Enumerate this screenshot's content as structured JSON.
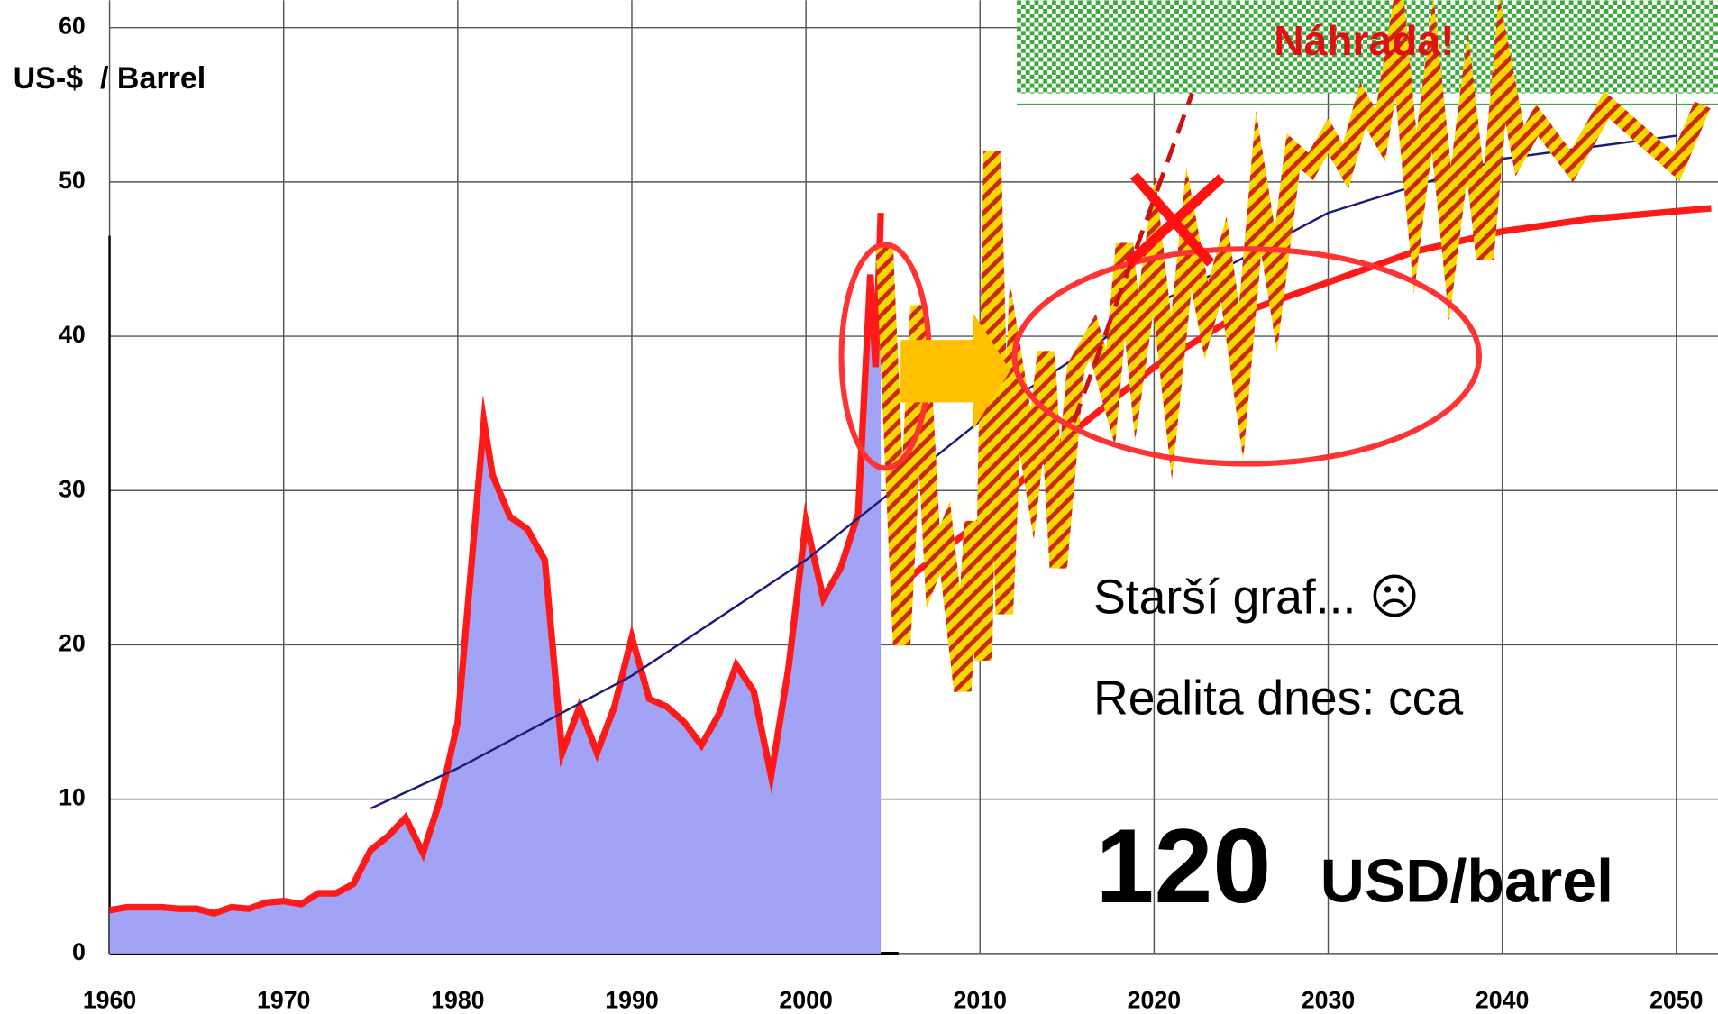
{
  "chart_data": {
    "type": "line",
    "ylabel": "US-$  / Barrel",
    "annotations": {
      "replacement": "Náhrada!",
      "old_chart": "Starší graf... ☹",
      "reality": "Realita dnes: cca",
      "price": "120",
      "unit": "USD/barel"
    },
    "xlim": [
      1960,
      2050
    ],
    "xticks": [
      1960,
      1970,
      1980,
      1990,
      2000,
      2010,
      2020,
      2030,
      2040,
      2050
    ],
    "ylim": [
      0,
      60
    ],
    "yticks": [
      0,
      10,
      20,
      30,
      40,
      50,
      60
    ],
    "grid": true,
    "series": [
      {
        "color": "#ff1a1a",
        "fill": "#a3a3f5",
        "x": [
          1960,
          1961,
          1962,
          1963,
          1964,
          1965,
          1966,
          1967,
          1968,
          1969,
          1970,
          1971,
          1972,
          1973,
          1974,
          1975,
          1976,
          1977,
          1978,
          1979,
          1980,
          1981.5,
          1982,
          1983,
          1984,
          1985,
          1986,
          1987,
          1988,
          1989,
          1990,
          1991,
          1992,
          1993,
          1994,
          1995,
          1996,
          1997,
          1998,
          1999,
          2000,
          2001,
          2002,
          2003,
          2003.7,
          2004,
          2004.3
        ],
        "values": [
          2.8,
          3.0,
          3.0,
          3.0,
          2.9,
          2.9,
          2.6,
          3.0,
          2.9,
          3.3,
          3.4,
          3.2,
          3.9,
          3.9,
          4.5,
          6.7,
          7.6,
          8.8,
          6.5,
          10,
          15,
          34.5,
          31,
          28.3,
          27.5,
          25.5,
          13,
          16,
          13,
          16,
          20.5,
          16.5,
          16,
          15,
          13.5,
          15.5,
          18.7,
          17,
          11.5,
          18.5,
          28,
          23,
          25,
          28.5,
          44,
          38,
          48
        ]
      },
      {
        "color": "#1a1a7a",
        "x": [
          1975,
          1980,
          1990,
          2000,
          2005,
          2010,
          2020,
          2030,
          2040,
          2050
        ],
        "values": [
          9.4,
          12,
          18,
          25.5,
          30,
          34.5,
          42,
          48,
          51.5,
          53
        ]
      },
      {
        "color": "#ff1a1a",
        "x": [
          2005,
          2010,
          2015,
          2020,
          2025,
          2030,
          2035,
          2040,
          2045,
          2050,
          2052
        ],
        "values": [
          23.5,
          28,
          33.5,
          38,
          41.5,
          43.5,
          45.5,
          46.8,
          47.6,
          48.1,
          48.3
        ]
      },
      {
        "color": "#f5d800",
        "x": [
          2004.5,
          2005.5,
          2006.5,
          2007.3,
          2008,
          2009,
          2009.6,
          2010.2,
          2010.7,
          2011.4,
          2012,
          2013,
          2013.8,
          2014.5,
          2015.5,
          2016.5,
          2017.5,
          2018.3,
          2019,
          2020,
          2021,
          2022,
          2023,
          2024,
          2025,
          2026,
          2027,
          2028,
          2029,
          2030,
          2031,
          2032,
          2033,
          2034,
          2035,
          2036,
          2037,
          2038,
          2039,
          2040,
          2041,
          2042,
          2044,
          2046,
          2048,
          2050,
          2051.5
        ],
        "values": [
          46,
          20,
          42,
          25,
          27,
          17,
          28,
          19,
          52,
          22,
          38,
          31,
          39,
          25,
          38,
          40,
          36,
          46,
          38,
          46,
          36,
          47,
          41,
          45,
          37,
          50,
          43,
          52,
          51,
          53,
          51,
          55,
          53,
          60,
          48,
          57,
          46,
          55,
          45,
          58,
          52,
          54,
          51,
          55,
          53,
          51,
          55
        ]
      }
    ]
  }
}
